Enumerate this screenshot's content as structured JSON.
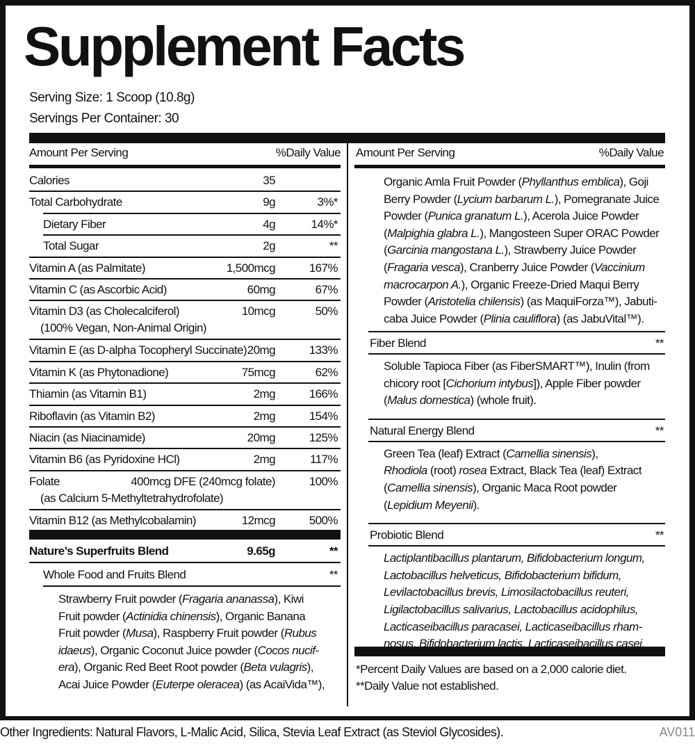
{
  "title": "Supplement Facts",
  "serving_size": "Serving Size: 1 Scoop (10.8g)",
  "servings_per_container": "Servings Per Container: 30",
  "header": {
    "amount": "Amount Per Serving",
    "dv": "%Daily Value"
  },
  "left_rows": [
    {
      "name": "Calories",
      "amount": "35",
      "dv": ""
    },
    {
      "name": "Total Carbohydrate",
      "amount": "9g",
      "dv": "3%*"
    },
    {
      "name": "Dietary Fiber",
      "amount": "4g",
      "dv": "14%*",
      "indent": true
    },
    {
      "name": "Total Sugar",
      "amount": "2g",
      "dv": "**",
      "indent": true
    },
    {
      "name": "Vitamin A (as Palmitate)",
      "amount": "1,500mcg",
      "dv": "167%"
    },
    {
      "name": "Vitamin C (as Ascorbic Acid)",
      "amount": "60mg",
      "dv": "67%"
    },
    {
      "name": "Vitamin D3 (as Cholecalciferol)",
      "sub": "(100% Vegan, Non-Animal Origin)",
      "amount": "10mcg",
      "dv": "50%"
    },
    {
      "name": "Vitamin E (as D-alpha Tocopheryl Succinate)",
      "amount": "20mg",
      "dv": "133%"
    },
    {
      "name": "Vitamin K (as Phytonadione)",
      "amount": "75mcg",
      "dv": "62%"
    },
    {
      "name": "Thiamin (as Vitamin B1)",
      "amount": "2mg",
      "dv": "166%"
    },
    {
      "name": "Riboflavin (as Vitamin B2)",
      "amount": "2mg",
      "dv": "154%"
    },
    {
      "name": "Niacin (as Niacinamide)",
      "amount": "20mg",
      "dv": "125%"
    },
    {
      "name": "Vitamin B6 (as Pyridoxine HCl)",
      "amount": "2mg",
      "dv": "117%"
    },
    {
      "name": "Folate",
      "sub": "(as Calcium 5-Methyltetrahydrofolate)",
      "amount": "400mcg DFE (240mcg folate)",
      "dv": "100%"
    },
    {
      "name": "Vitamin B12 (as Methylcobalamin)",
      "amount": "12mcg",
      "dv": "500%"
    }
  ],
  "superfruits": {
    "name": "Nature’s Superfruits Blend",
    "amount": "9.65g",
    "dv": "**"
  },
  "whole_food": {
    "name": "Whole Food and Fruits Blend",
    "dv": "**",
    "lines": [
      [
        {
          "t": "Strawberry Fruit powder ("
        },
        {
          "t": "Fragaria ananassa",
          "i": true
        },
        {
          "t": "), Kiwi"
        }
      ],
      [
        {
          "t": "Fruit powder ("
        },
        {
          "t": "Actinidia chinensis",
          "i": true
        },
        {
          "t": "), Organic Banana"
        }
      ],
      [
        {
          "t": "Fruit powder ("
        },
        {
          "t": "Musa",
          "i": true
        },
        {
          "t": "), Raspberry Fruit powder ("
        },
        {
          "t": "Rubus",
          "i": true
        }
      ],
      [
        {
          "t": "idaeus",
          "i": true
        },
        {
          "t": "), Organic Coconut Juice powder ("
        },
        {
          "t": "Cocos nucif-",
          "i": true
        }
      ],
      [
        {
          "t": "era",
          "i": true
        },
        {
          "t": "), Organic Red Beet Root powder ("
        },
        {
          "t": "Beta vulagris",
          "i": true
        },
        {
          "t": "),"
        }
      ],
      [
        {
          "t": "Acai Juice Powder ("
        },
        {
          "t": "Euterpe oleracea",
          "i": true
        },
        {
          "t": ") (as AcaiVida™),"
        }
      ]
    ]
  },
  "right_cont": {
    "lines": [
      [
        {
          "t": "Organic Amla Fruit Powder ("
        },
        {
          "t": "Phyllanthus emblica",
          "i": true
        },
        {
          "t": "), Goji"
        }
      ],
      [
        {
          "t": "Berry Powder ("
        },
        {
          "t": "Lycium barbarum L.",
          "i": true
        },
        {
          "t": "), Pomegranate Juice"
        }
      ],
      [
        {
          "t": "Powder ("
        },
        {
          "t": "Punica granatum L.",
          "i": true
        },
        {
          "t": "), Acerola Juice Powder"
        }
      ],
      [
        {
          "t": "("
        },
        {
          "t": "Malpighia glabra L.",
          "i": true
        },
        {
          "t": "), Mangosteen Super ORAC Powder"
        }
      ],
      [
        {
          "t": "("
        },
        {
          "t": "Garcinia mangostana L.",
          "i": true
        },
        {
          "t": "), Strawberry Juice Powder"
        }
      ],
      [
        {
          "t": "("
        },
        {
          "t": "Fragaria vesca",
          "i": true
        },
        {
          "t": "), Cranberry Juice Powder ("
        },
        {
          "t": "Vaccinium",
          "i": true
        }
      ],
      [
        {
          "t": "macrocarpon A.",
          "i": true
        },
        {
          "t": "), Organic Freeze-Dried Maqui Berry"
        }
      ],
      [
        {
          "t": "Powder ("
        },
        {
          "t": "Aristotelia chilensis",
          "i": true
        },
        {
          "t": ") (as MaquiForza™), Jabuti-"
        }
      ],
      [
        {
          "t": "caba Juice Powder ("
        },
        {
          "t": "Plinia cauliflora",
          "i": true
        },
        {
          "t": ") (as JabuVital™)."
        }
      ]
    ]
  },
  "blends": [
    {
      "name": "Fiber Blend",
      "dv": "**",
      "lines": [
        [
          {
            "t": "Soluble Tapioca Fiber (as FiberSMART™), Inulin (from"
          }
        ],
        [
          {
            "t": "chicory root ["
          },
          {
            "t": "Cichorium intybus",
            "i": true
          },
          {
            "t": "]), Apple Fiber powder"
          }
        ],
        [
          {
            "t": "("
          },
          {
            "t": "Malus domestica",
            "i": true
          },
          {
            "t": ") (whole fruit)."
          }
        ]
      ]
    },
    {
      "name": "Natural Energy Blend",
      "dv": "**",
      "lines": [
        [
          {
            "t": "Green Tea (leaf) Extract ("
          },
          {
            "t": "Camellia sinensis",
            "i": true
          },
          {
            "t": "),"
          }
        ],
        [
          {
            "t": "Rhodiola",
            "i": true
          },
          {
            "t": " (root) "
          },
          {
            "t": "rosea",
            "i": true
          },
          {
            "t": " Extract, Black Tea (leaf) Extract"
          }
        ],
        [
          {
            "t": "("
          },
          {
            "t": "Camellia sinensis",
            "i": true
          },
          {
            "t": "), Organic Maca Root powder"
          }
        ],
        [
          {
            "t": "("
          },
          {
            "t": "Lepidium Meyenii",
            "i": true
          },
          {
            "t": ")."
          }
        ]
      ]
    },
    {
      "name": "Probiotic Blend",
      "dv": "**",
      "lines": [
        [
          {
            "t": "Lactiplantibacillus plantarum, Bifidobacterium longum,",
            "i": true
          }
        ],
        [
          {
            "t": "Lactobacillus helveticus, Bifidobacterium bifidum,",
            "i": true
          }
        ],
        [
          {
            "t": "Levilactobacillus brevis, Limosilactobacillus reuteri,",
            "i": true
          }
        ],
        [
          {
            "t": "Ligilactobacillus salivarius, Lactobacillus acidophilus,",
            "i": true
          }
        ],
        [
          {
            "t": "Lacticaseibacillus paracasei, Lacticaseibacillus rham-",
            "i": true
          }
        ],
        [
          {
            "t": "nosus, Bifidobacterium lactis, Lacticaseibacillus casei.",
            "i": true
          }
        ]
      ]
    }
  ],
  "footnotes": [
    "*Percent Daily Values are based on a 2,000 calorie diet.",
    "**Daily Value not established."
  ],
  "other_ingredients": "Other Ingredients: Natural Flavors, L-Malic Acid, Silica, Stevia Leaf Extract (as Steviol Glycosides).",
  "product_code": "AV011"
}
